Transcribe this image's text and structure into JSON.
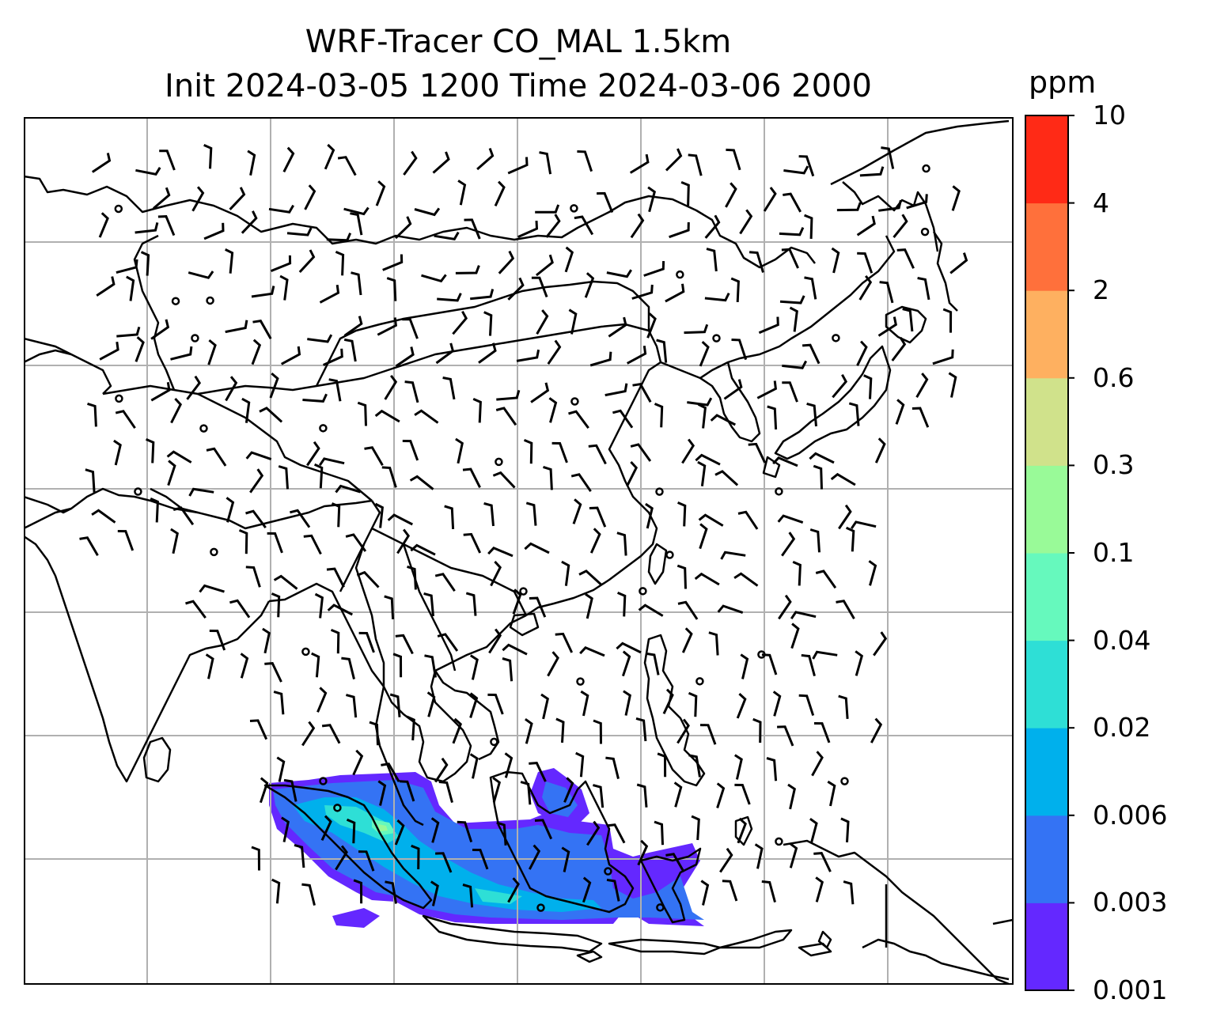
{
  "title": {
    "line1": "WRF-Tracer CO_MAL 1.5km",
    "line2": "Init 2024-03-05 1200 Time 2024-03-06 2000"
  },
  "colorbar": {
    "unit": "ppm",
    "levels": [
      "0.001",
      "0.003",
      "0.006",
      "0.02",
      "0.04",
      "0.1",
      "0.3",
      "0.6",
      "2",
      "4",
      "10"
    ],
    "colors": [
      "#6428ff",
      "#3473f4",
      "#00b0ec",
      "#2edfd6",
      "#66f9bd",
      "#99fa98",
      "#d0e28b",
      "#feb060",
      "#ff703b",
      "#ff2a16"
    ]
  },
  "map": {
    "gridlines": true,
    "features": [
      "coastlines",
      "country-borders",
      "wind-barbs",
      "tracer-concentration-field"
    ]
  }
}
